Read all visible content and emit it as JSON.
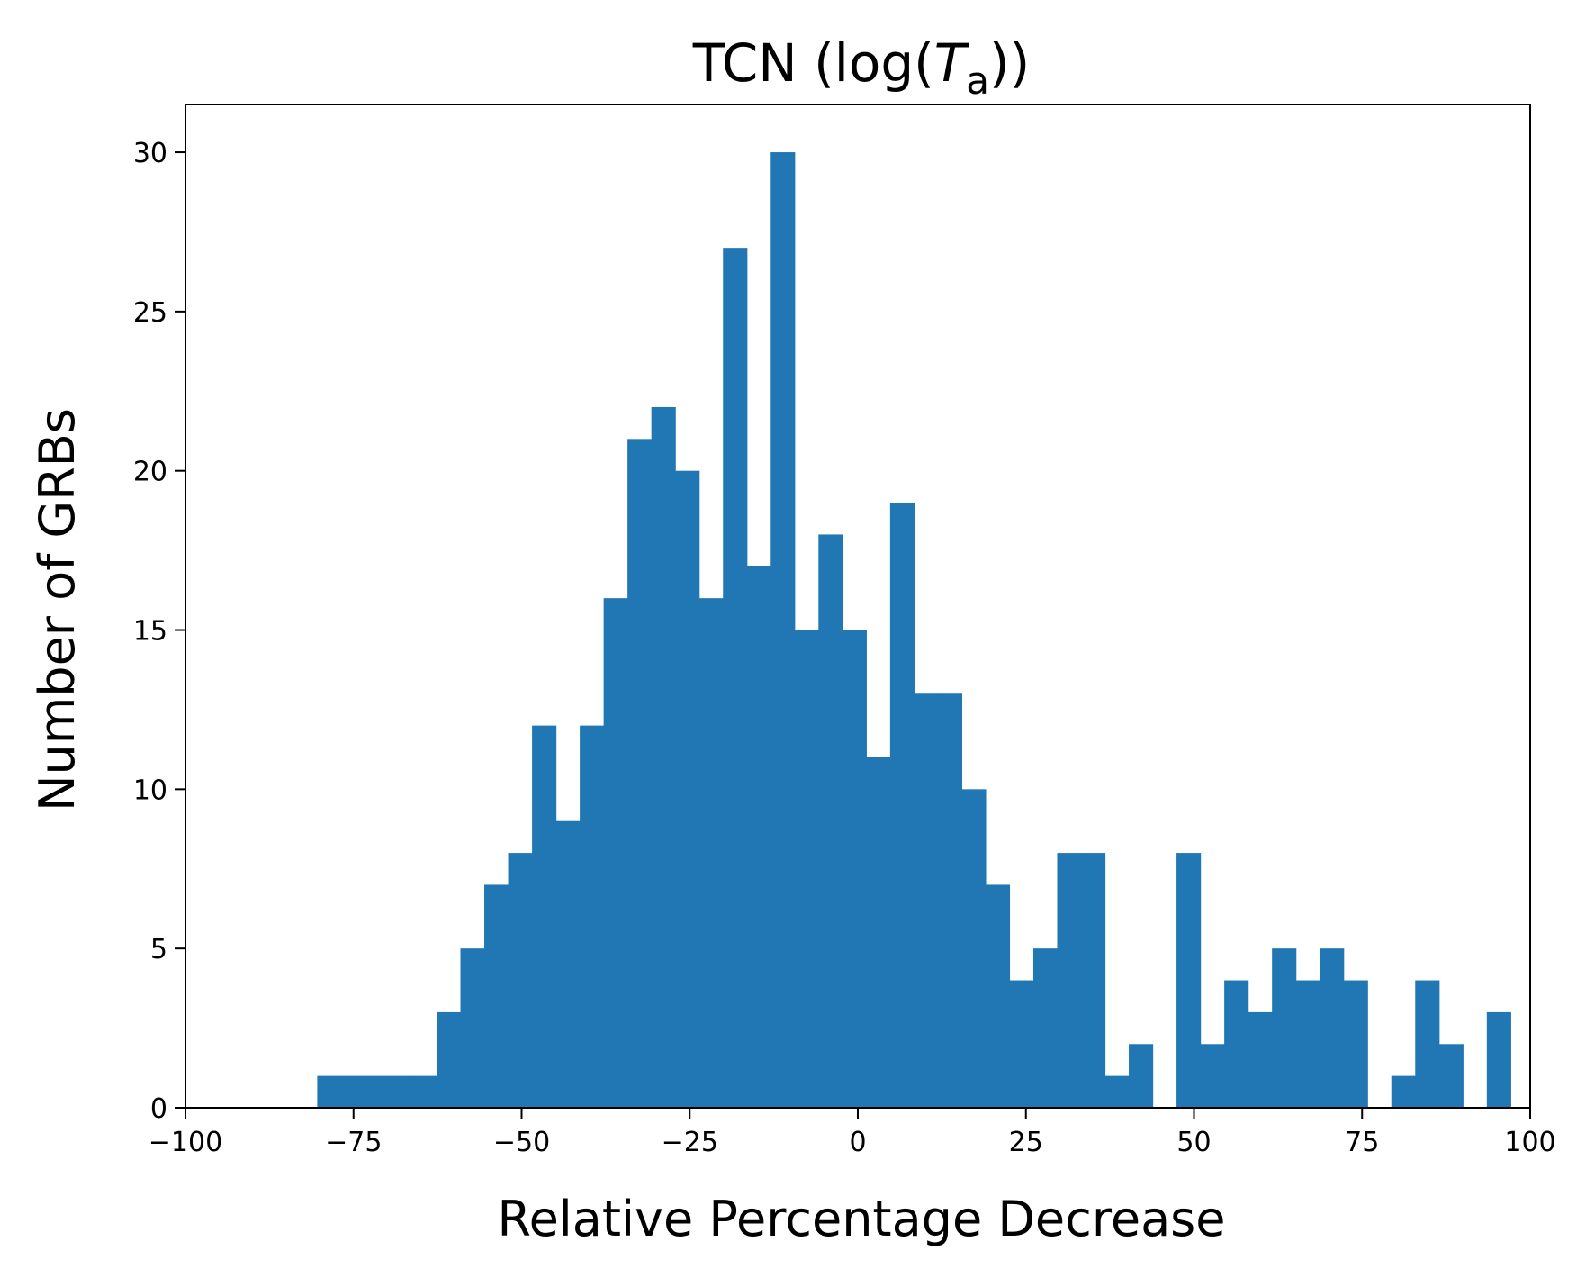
{
  "chart_data": {
    "type": "bar",
    "title": {
      "prefix": "TCN (log(",
      "symbol": "T",
      "subscript": "a",
      "suffix": "))"
    },
    "xlabel": "Relative Percentage Decrease",
    "ylabel": "Number of GRBs",
    "xlim": [
      -100,
      100
    ],
    "ylim": [
      0,
      31.5
    ],
    "xticks": [
      -100,
      -75,
      -50,
      -25,
      0,
      25,
      50,
      75,
      100
    ],
    "xtick_labels": [
      "−100",
      "−75",
      "−50",
      "−25",
      "0",
      "25",
      "50",
      "75",
      "100"
    ],
    "yticks": [
      0,
      5,
      10,
      15,
      20,
      25,
      30
    ],
    "ytick_labels": [
      "0",
      "5",
      "10",
      "15",
      "20",
      "25",
      "30"
    ],
    "bar_color": "#2077b4",
    "grid": false,
    "bin_start": -80.4,
    "bin_width": 3.55,
    "counts": [
      1,
      1,
      1,
      1,
      1,
      3,
      5,
      7,
      8,
      12,
      9,
      12,
      16,
      21,
      22,
      20,
      16,
      27,
      17,
      30,
      15,
      18,
      15,
      11,
      19,
      13,
      13,
      10,
      7,
      4,
      5,
      8,
      8,
      1,
      2,
      0,
      8,
      2,
      4,
      3,
      5,
      4,
      5,
      4,
      0,
      1,
      4,
      2,
      0,
      3
    ]
  }
}
